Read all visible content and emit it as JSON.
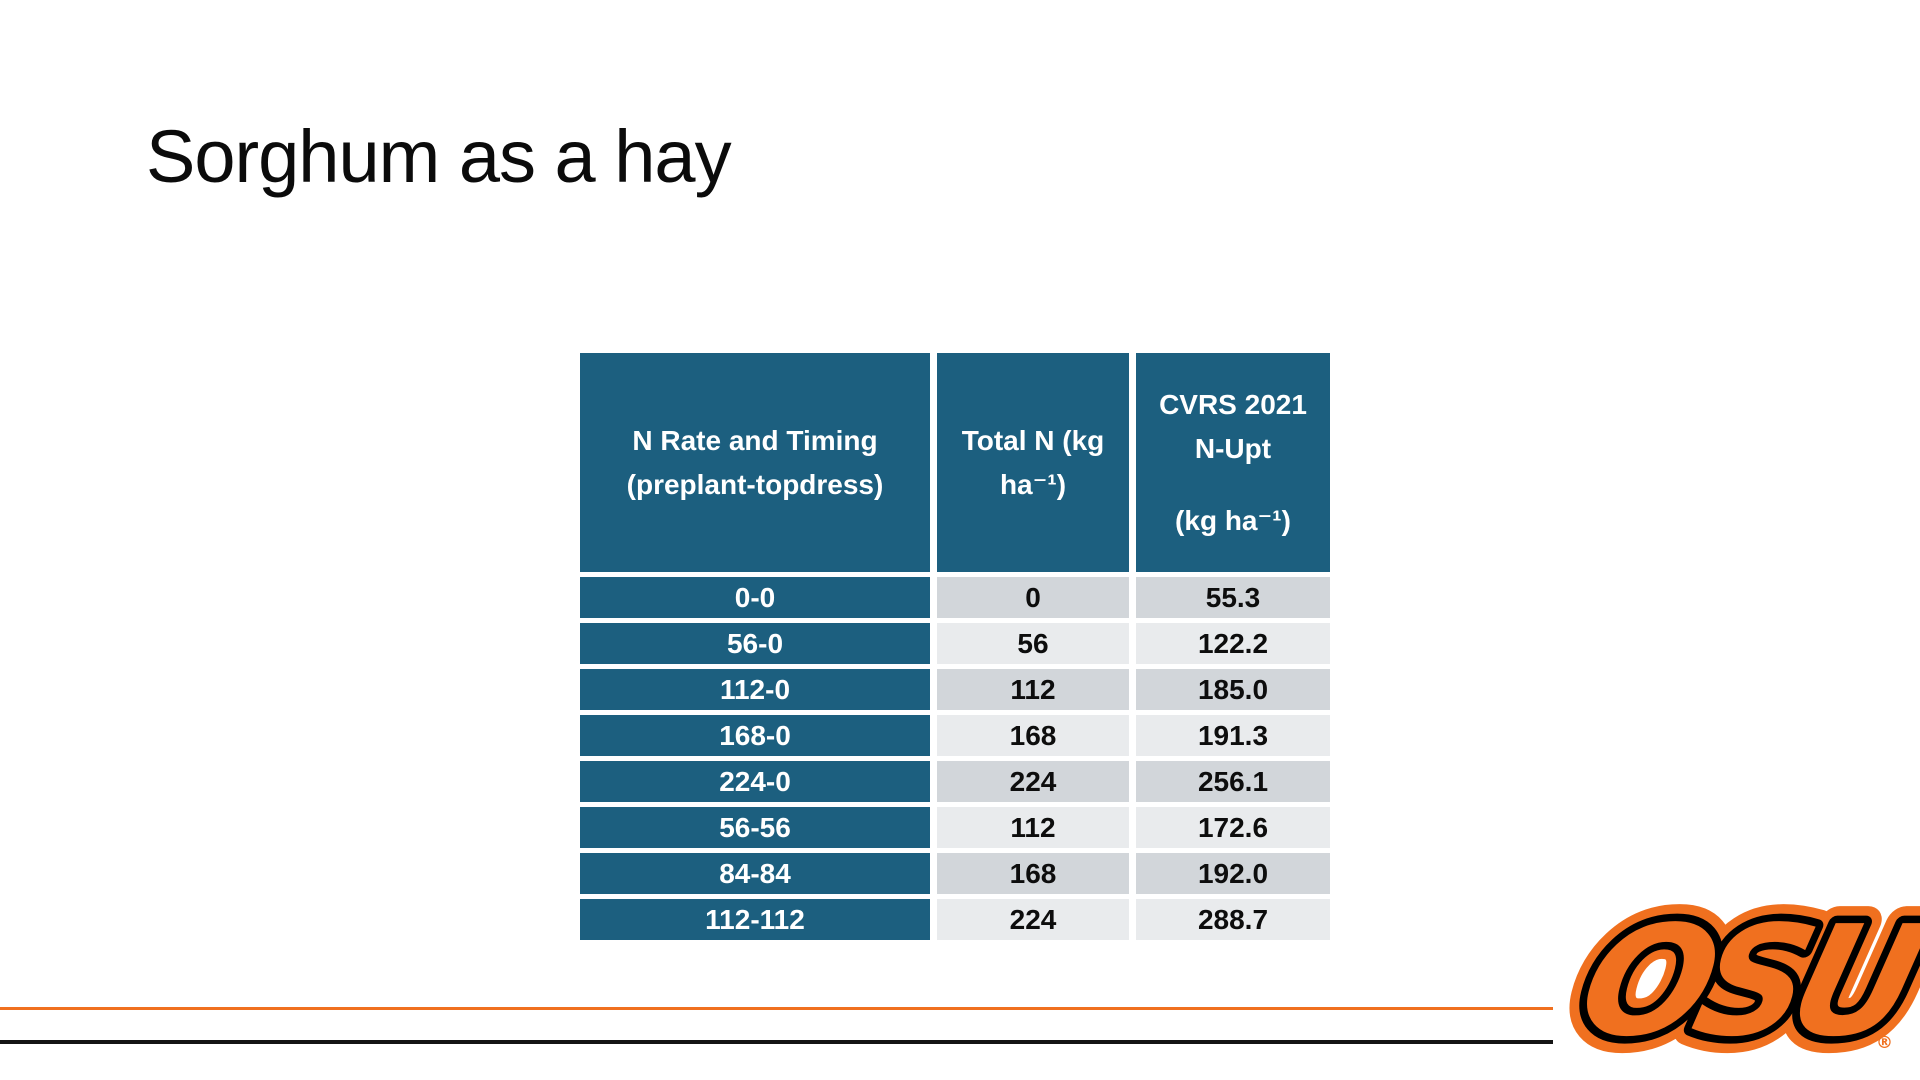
{
  "slide": {
    "title": "Sorghum as a hay"
  },
  "table": {
    "headers": {
      "n_rate": "N Rate and Timing (preplant-topdress)",
      "total_n": "Total N (kg ha⁻¹)",
      "cvrs_line1": "CVRS 2021 N-Upt",
      "cvrs_line2": "(kg ha⁻¹)"
    },
    "columns": [
      "N Rate and Timing (preplant-topdress)",
      "Total N (kg ha⁻¹)",
      "CVRS 2021 N-Upt (kg ha⁻¹)"
    ],
    "rows": [
      {
        "n_rate_timing": "0-0",
        "total_n": "0",
        "cvrs_n_upt": "55.3"
      },
      {
        "n_rate_timing": "56-0",
        "total_n": "56",
        "cvrs_n_upt": "122.2"
      },
      {
        "n_rate_timing": "112-0",
        "total_n": "112",
        "cvrs_n_upt": "185.0"
      },
      {
        "n_rate_timing": "168-0",
        "total_n": "168",
        "cvrs_n_upt": "191.3"
      },
      {
        "n_rate_timing": "224-0",
        "total_n": "224",
        "cvrs_n_upt": "256.1"
      },
      {
        "n_rate_timing": "56-56",
        "total_n": "112",
        "cvrs_n_upt": "172.6"
      },
      {
        "n_rate_timing": "84-84",
        "total_n": "168",
        "cvrs_n_upt": "192.0"
      },
      {
        "n_rate_timing": "112-112",
        "total_n": "224",
        "cvrs_n_upt": "288.7"
      }
    ]
  },
  "logo": {
    "text": "OSU",
    "registered": "®"
  },
  "colors": {
    "teal": "#1C5F7F",
    "orange": "#F0701F",
    "row_dark": "#D2D6DA",
    "row_light": "#E9EBED",
    "line_black": "#141414",
    "title_text": "#0b0b0b"
  }
}
